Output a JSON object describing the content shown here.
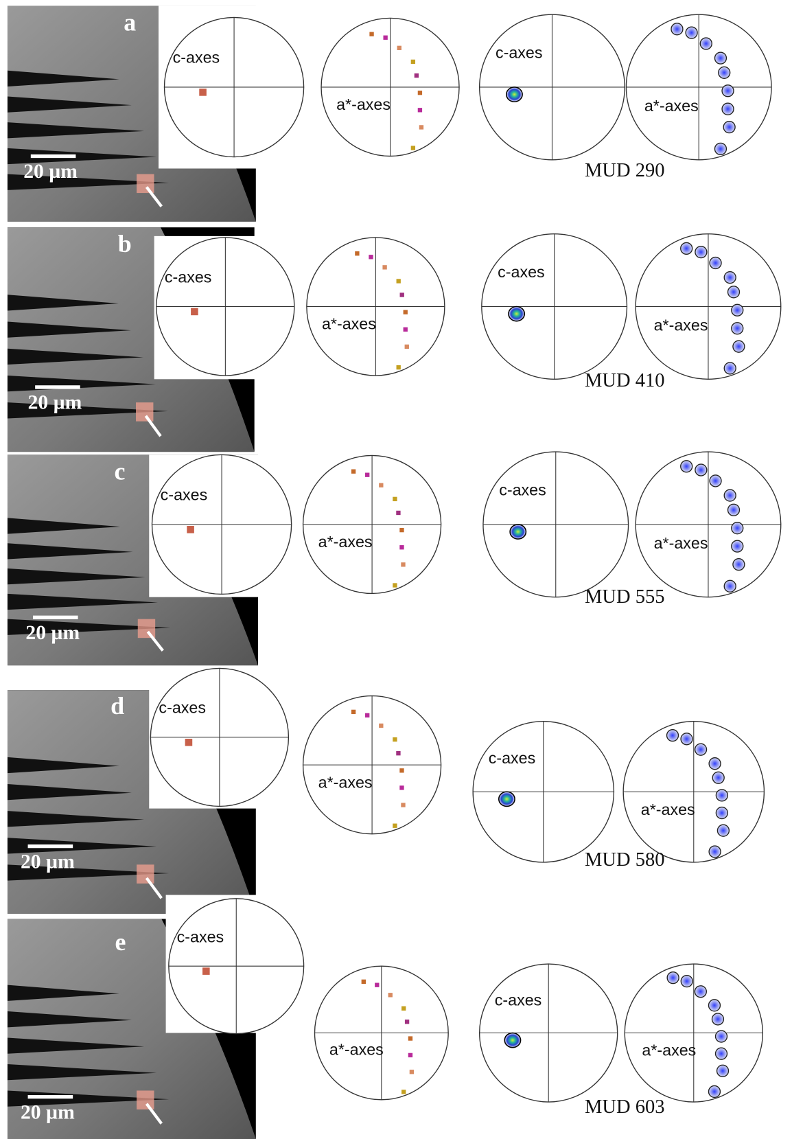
{
  "panels": [
    {
      "letter": "a",
      "scale_bar": "20 µm",
      "c_label": "c-axes",
      "a_label": "a*-axes",
      "density_c_label": "c-axes",
      "density_a_label": "a*-axes",
      "sample": "MUD 290"
    },
    {
      "letter": "b",
      "scale_bar": "20 µm",
      "c_label": "c-axes",
      "a_label": "a*-axes",
      "density_c_label": "c-axes",
      "density_a_label": "a*-axes",
      "sample": "MUD 410"
    },
    {
      "letter": "c",
      "scale_bar": "20 µm",
      "c_label": "c-axes",
      "a_label": "a*-axes",
      "density_c_label": "c-axes",
      "density_a_label": "a*-axes",
      "sample": "MUD 555"
    },
    {
      "letter": "d",
      "scale_bar": "20 µm",
      "c_label": "c-axes",
      "a_label": "a*-axes",
      "density_c_label": "c-axes",
      "density_a_label": "a*-axes",
      "sample": "MUD 580"
    },
    {
      "letter": "e",
      "scale_bar": "20 µm",
      "c_label": "c-axes",
      "a_label": "a*-axes",
      "density_c_label": "c-axes",
      "density_a_label": "a*-axes",
      "sample": "MUD 603"
    }
  ]
}
